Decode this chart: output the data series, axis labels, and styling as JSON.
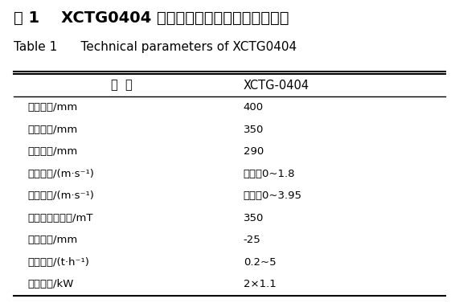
{
  "title_cn": "表 1    XCTG0404 型细粒磁性物料干选机技术参数",
  "title_en": "Table 1      Technical parameters of XCTG0404",
  "col_header_1": "设  备",
  "col_header_2": "XCTG-0404",
  "rows": [
    [
      "滚筒直径/mm",
      "400"
    ],
    [
      "滚筒长度/mm",
      "350"
    ],
    [
      "皮带宽度/mm",
      "290"
    ],
    [
      "皮带速度/(m·s⁻¹)",
      "可调，0~1.8"
    ],
    [
      "磁系速度/(m·s⁻¹)",
      "可调，0~3.95"
    ],
    [
      "筒表磁感应强度/mT",
      "350"
    ],
    [
      "处理粒度/mm",
      "-25"
    ],
    [
      "处理能力/(t·h⁻¹)",
      "0.2~5"
    ],
    [
      "驱动功率/kW",
      "2×1.1"
    ]
  ],
  "bg_color": "#ffffff",
  "text_color": "#000000",
  "figsize": [
    5.71,
    3.77
  ],
  "dpi": 100
}
